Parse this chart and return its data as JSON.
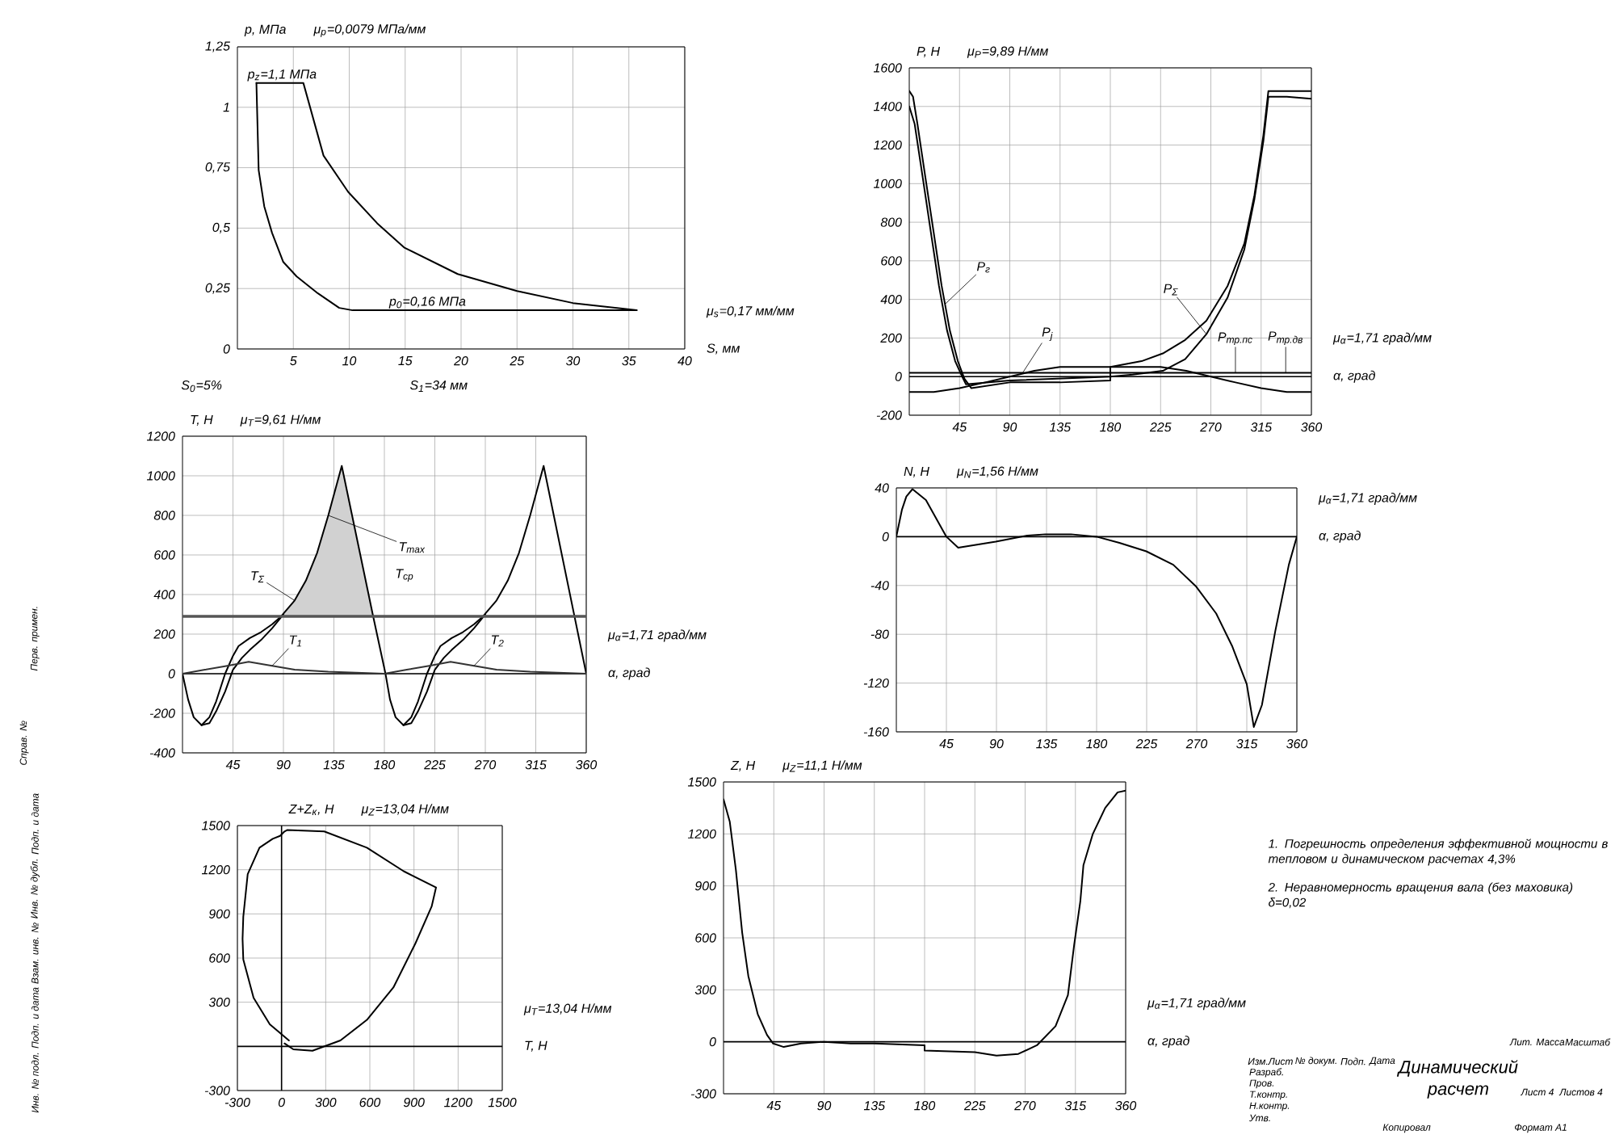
{
  "chart_data": [
    {
      "type": "line",
      "xlabel": "S, мм",
      "ylabel": "p, МПа",
      "xlim": [
        0,
        40
      ],
      "ylim": [
        0,
        1.25
      ],
      "xticks": [
        5,
        10,
        15,
        20,
        25,
        30,
        35,
        40
      ],
      "yticks": [
        0,
        {
          "value": 0.25,
          "label": "0,25"
        },
        {
          "value": 0.5,
          "label": "0,5"
        },
        {
          "value": 0.75,
          "label": "0,75"
        },
        1,
        {
          "value": 1.25,
          "label": "1,25"
        }
      ],
      "grid": true,
      "series": [
        {
          "color": "#000000",
          "x": [
            1.7,
            5.9,
            7.7,
            9.9,
            12.5,
            14.9,
            19.7,
            25,
            30,
            35.7
          ],
          "values": [
            1.1,
            1.1,
            0.8,
            0.65,
            0.52,
            0.42,
            0.31,
            0.24,
            0.19,
            0.16
          ]
        },
        {
          "color": "#000000",
          "x": [
            1.7,
            1.9,
            2.4,
            3.1,
            4.1,
            5.3,
            7.2,
            9.1,
            10.3,
            35.7
          ],
          "values": [
            1.1,
            0.74,
            0.59,
            0.48,
            0.36,
            0.3,
            0.23,
            0.17,
            0.16,
            0.16
          ]
        }
      ],
      "annotations": [
        "μ$_{p}$=0,0079 МПа/мм",
        "μ$_{s}$=0,17 мм/мм",
        {
          "text": "p$_{z}$=1,1 МПа",
          "x": 4,
          "y": 1.1
        },
        {
          "text": "p$_{0}$=0,16 МПа",
          "x": 17,
          "y": 0.16
        },
        "S$_{0}$=5%",
        "S$_{1}$=34 мм"
      ]
    },
    {
      "type": "line",
      "xlabel": "α, град",
      "ylabel": "P, Н",
      "xlim": [
        0,
        360
      ],
      "ylim": [
        -200,
        1600
      ],
      "xticks": [
        45,
        90,
        135,
        180,
        225,
        270,
        315,
        360
      ],
      "yticks": [
        -200,
        0,
        200,
        400,
        600,
        800,
        1000,
        1200,
        1400,
        1600
      ],
      "grid": true,
      "series": [
        {
          "color": "#000000",
          "x": [
            0,
            3.4,
            7.3,
            14.5,
            21.8,
            29,
            36.3,
            43.5,
            49.3,
            55.6,
            90,
            135,
            180,
            180,
            208,
            227,
            247,
            266,
            285,
            300,
            309,
            317,
            321.5,
            360
          ],
          "values": [
            1480,
            1450,
            1310,
            1030,
            750,
            470,
            240,
            80,
            -10,
            -60,
            -30,
            -30,
            -20,
            50,
            80,
            120,
            190,
            290,
            470,
            690,
            940,
            1250,
            1480,
            1480
          ]
        },
        {
          "color": "#000000",
          "x": [
            0,
            4.8,
            12.1,
            19.3,
            26.6,
            33.8,
            41.1,
            47.4,
            50.8,
            90,
            135,
            180,
            200,
            227,
            247,
            266,
            285,
            300,
            309,
            317,
            321.5,
            338,
            360
          ],
          "values": [
            1400,
            1310,
            1030,
            750,
            470,
            240,
            80,
            0,
            -40,
            -20,
            -10,
            0,
            10,
            30,
            90,
            220,
            410,
            660,
            920,
            1220,
            1450,
            1450,
            1440
          ]
        },
        {
          "color": "#000000",
          "x": [
            0,
            22,
            45,
            68,
            90,
            112,
            135,
            158,
            180,
            202,
            225,
            248,
            270,
            292,
            315,
            338,
            360
          ],
          "values": [
            -80,
            -80,
            -60,
            -30,
            0,
            30,
            50,
            50,
            50,
            50,
            50,
            30,
            0,
            -30,
            -60,
            -80,
            -80
          ]
        },
        {
          "color": "#000000",
          "x": [
            0,
            360
          ],
          "values": [
            20,
            20
          ]
        }
      ],
      "annotations": [
        "μ$_{P}$=9,89 Н/мм",
        "μ$_{α}$=1,71 град/мм",
        {
          "text": "P$_{г}$",
          "x": 32,
          "y": 375
        },
        {
          "text": "P$_{j}$",
          "x": 101,
          "y": 15
        },
        {
          "text": "P$_{Σ}$",
          "x": 266,
          "y": 220
        },
        {
          "text": "P$_{тр.пс}$",
          "x": 292,
          "y": 20
        },
        {
          "text": "P$_{тр.дв}$",
          "x": 337,
          "y": 20
        }
      ]
    },
    {
      "type": "line",
      "xlabel": "α, град",
      "ylabel": "T, Н",
      "xlim": [
        0,
        360
      ],
      "ylim": [
        -400,
        1200
      ],
      "xticks": [
        45,
        90,
        135,
        180,
        225,
        270,
        315,
        360
      ],
      "yticks": [
        -400,
        -200,
        0,
        200,
        400,
        600,
        800,
        1000,
        1200
      ],
      "grid": true,
      "series": [
        {
          "color": "#000000",
          "x": [
            0,
            5,
            10,
            17,
            24,
            30,
            38,
            45,
            50,
            60,
            70,
            80,
            88,
            100,
            110,
            120,
            130,
            142,
            170,
            181,
            185,
            190,
            197,
            204,
            210,
            218,
            225,
            230,
            240,
            250,
            260,
            268,
            280,
            290,
            300,
            310,
            322,
            360
          ],
          "values": [
            0,
            -130,
            -220,
            -260,
            -220,
            -140,
            0,
            90,
            140,
            180,
            210,
            250,
            290,
            370,
            470,
            610,
            800,
            1050,
            290,
            0,
            -130,
            -220,
            -260,
            -220,
            -140,
            0,
            90,
            140,
            180,
            210,
            250,
            290,
            370,
            470,
            610,
            800,
            1050,
            0
          ],
          "lower": [
            null,
            null,
            null,
            null,
            null,
            null,
            null,
            null,
            null,
            null,
            null,
            null,
            290,
            290,
            290,
            290,
            290,
            290,
            290,
            null,
            null,
            null,
            null,
            null,
            null,
            null,
            null,
            null,
            null,
            null,
            null,
            null,
            null,
            null,
            null,
            null,
            null,
            null
          ],
          "upper": [
            null,
            null,
            null,
            null,
            null,
            null,
            null,
            null,
            null,
            null,
            null,
            null,
            290,
            370,
            470,
            610,
            800,
            1050,
            290,
            null,
            null,
            null,
            null,
            null,
            null,
            null,
            null,
            null,
            null,
            null,
            null,
            null,
            null,
            null,
            null,
            null,
            null,
            null
          ]
        },
        {
          "color": "#000000",
          "x": [
            17,
            24,
            30,
            38,
            45,
            53,
            60,
            70,
            80,
            90,
            135,
            197,
            204,
            210,
            218,
            225,
            233,
            240,
            250,
            260,
            270
          ],
          "values": [
            -260,
            -250,
            -190,
            -90,
            20,
            80,
            120,
            170,
            230,
            300,
            null,
            -260,
            -250,
            -190,
            -90,
            20,
            80,
            120,
            170,
            230,
            300
          ]
        },
        {
          "color": "#333333",
          "x": [
            0,
            20,
            40,
            59,
            80,
            100,
            130,
            180,
            200,
            220,
            239,
            260,
            280,
            310,
            360
          ],
          "values": [
            0,
            20,
            40,
            60,
            40,
            20,
            10,
            0,
            20,
            40,
            60,
            40,
            20,
            10,
            0
          ]
        }
      ],
      "ref_lines": [
        {
          "axis": "y",
          "value": 290,
          "label": "T$_{ср}$",
          "color": "#555555"
        }
      ],
      "annotations": [
        "μ$_{T}$=9,61 Н/мм",
        "μ$_{α}$=1,71 град/мм",
        {
          "text": "T$_{Σ}$",
          "x": 100,
          "y": 370
        },
        {
          "text": "T$_{max}$",
          "x": 130,
          "y": 800
        },
        {
          "text": "T$_{1}$",
          "x": 80,
          "y": 40
        },
        {
          "text": "T$_{2}$",
          "x": 260,
          "y": 40
        }
      ]
    },
    {
      "type": "line",
      "xlabel": "α, град",
      "ylabel": "N, Н",
      "xlim": [
        0,
        360
      ],
      "ylim": [
        -160,
        40
      ],
      "xticks": [
        45,
        90,
        135,
        180,
        225,
        270,
        315,
        360
      ],
      "yticks": [
        -160,
        -120,
        -80,
        -40,
        0,
        40
      ],
      "grid": true,
      "series": [
        {
          "color": "#000000",
          "x": [
            0,
            5,
            9,
            14.5,
            26.6,
            45,
            55.6,
            89.4,
            118,
            134,
            157,
            180,
            200.5,
            224.7,
            248.9,
            269.6,
            287.5,
            302,
            315,
            321.3,
            328.6,
            340.7,
            352.8,
            360
          ],
          "values": [
            0,
            22,
            33,
            39,
            30,
            0,
            -9,
            -4,
            1,
            2,
            2,
            0,
            -5,
            -12,
            -23,
            -41,
            -63,
            -90,
            -121,
            -156,
            -138,
            -77,
            -23,
            0
          ]
        }
      ],
      "annotations": [
        "μ$_{N}$=1,56 Н/мм",
        "μ$_{α}$=1,71 град/мм"
      ]
    },
    {
      "type": "line",
      "xlabel": "T, Н",
      "ylabel": "Z+Z$_{к}$, Н",
      "xlim": [
        -300,
        1500
      ],
      "ylim": [
        -300,
        1500
      ],
      "xticks": [
        -300,
        0,
        300,
        600,
        900,
        1200,
        1500
      ],
      "yticks": [
        -300,
        300,
        600,
        900,
        1200,
        1500
      ],
      "grid": true,
      "series": [
        {
          "color": "#000000",
          "x": [
            50,
            -80,
            -190,
            -260,
            -265,
            -260,
            -230,
            -150,
            -60,
            -10,
            20,
            40,
            290,
            580,
            830,
            1050,
            1020,
            910,
            760,
            580,
            400,
            210,
            80,
            20
          ],
          "values": [
            40,
            150,
            330,
            590,
            730,
            880,
            1170,
            1350,
            1410,
            1430,
            1460,
            1470,
            1460,
            1350,
            1190,
            1080,
            950,
            700,
            400,
            180,
            40,
            -30,
            -20,
            20
          ]
        }
      ],
      "annotations": [
        "μ$_{Z}$=13,04 Н/мм",
        "μ$_{T}$=13,04 Н/мм"
      ]
    },
    {
      "type": "line",
      "xlabel": "α, град",
      "ylabel": "Z, Н",
      "xlim": [
        0,
        360
      ],
      "ylim": [
        -300,
        1500
      ],
      "xticks": [
        45,
        90,
        135,
        180,
        225,
        270,
        315,
        360
      ],
      "yticks": [
        -300,
        0,
        300,
        600,
        900,
        1200,
        1500
      ],
      "grid": true,
      "series": [
        {
          "color": "#000000",
          "x": [
            0,
            5.6,
            11.1,
            16.7,
            22.2,
            30.6,
            38.9,
            44.4,
            53.9,
            69.4,
            90,
            113.9,
            135,
            180,
            180,
            225,
            244.4,
            263.9,
            280.6,
            297.2,
            308.3,
            313.9,
            319.4,
            322.2,
            330.6,
            341.7,
            352.8,
            360
          ],
          "values": [
            1400,
            1270,
            990,
            630,
            380,
            160,
            40,
            -10,
            -30,
            -10,
            0,
            -10,
            -10,
            -20,
            -50,
            -60,
            -80,
            -70,
            -20,
            90,
            270,
            560,
            810,
            1020,
            1200,
            1350,
            1440,
            1450
          ]
        }
      ],
      "annotations": [
        "μ$_{Z}$=11,1 Н/мм",
        "μ$_{α}$=1,71 град/мм"
      ]
    },
    {
      "type": "other",
      "title": "Динамический расчет",
      "annotations": [
        "1. Погрешность определения эффективной мощности в тепловом и динамическом расчетах 4,3%",
        "2. Неравномерность вращения вала (без маховика) δ=0,02",
        "Изм.",
        "Лист",
        "№ докум.",
        "Подп.",
        "Дата",
        "Разраб.",
        "Пров.",
        "Т.контр.",
        "Н.контр.",
        "Утв.",
        "Лит.",
        "Масса",
        "Масштаб",
        "Лист 4",
        "Листов 4",
        "Копировал",
        "Формат A1"
      ]
    },
    {
      "type": "other",
      "annotations": [
        "Перв. примен.",
        "Справ. №",
        "Подп. и дата",
        "Инв. № дубл.",
        "Взам. инв. №",
        "Подп. и дата",
        "Инв. № подл."
      ]
    }
  ]
}
